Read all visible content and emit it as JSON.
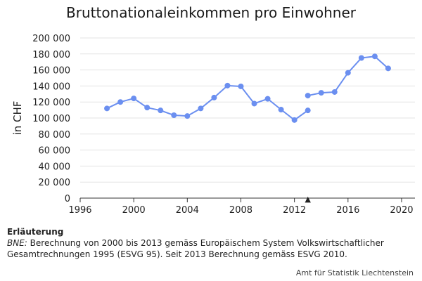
{
  "chart_data": {
    "type": "line",
    "title": "Bruttonationaleinkommen pro Einwohner",
    "ylabel": "in CHF",
    "xlabel": "",
    "xlim": [
      1996,
      2021
    ],
    "ylim": [
      0,
      200000
    ],
    "x_ticks": [
      "1996",
      "2000",
      "2004",
      "2008",
      "2012",
      "2016",
      "2020"
    ],
    "x_tick_values": [
      1996,
      2000,
      2004,
      2008,
      2012,
      2016,
      2020
    ],
    "y_ticks": [
      "0",
      "20 000",
      "40 000",
      "60 000",
      "80 000",
      "100 000",
      "120 000",
      "140 000",
      "160 000",
      "180 000",
      "200 000"
    ],
    "y_tick_values": [
      0,
      20000,
      40000,
      60000,
      80000,
      100000,
      120000,
      140000,
      160000,
      180000,
      200000
    ],
    "grid": "horizontal",
    "color": "#6b8ff0",
    "series": [
      {
        "segments": [
          {
            "x": [
              1998,
              1999,
              2000,
              2001,
              2002,
              2003,
              2004,
              2005,
              2006,
              2007,
              2008,
              2009,
              2010,
              2011,
              2012,
              2013
            ],
            "y": [
              112000,
              120000,
              124500,
              113000,
              109500,
              103500,
              102500,
              112000,
              125500,
              140500,
              139500,
              118000,
              124000,
              110500,
              97500,
              109500
            ]
          },
          {
            "x": [
              2013,
              2014,
              2015,
              2016,
              2017,
              2018,
              2019
            ],
            "y": [
              128000,
              131500,
              132500,
              156500,
              175000,
              177000,
              162000
            ]
          }
        ]
      }
    ],
    "marker": {
      "x": 2013,
      "symbol": "▲"
    }
  },
  "note": {
    "heading": "Erläuterung",
    "abbr": "BNE:",
    "text": " Berechnung von 2000 bis 2013 gemäss Europäischem System Volkswirtschaftlicher Gesamtrechnungen 1995 (ESVG 95). Seit 2013 Berechnung gemäss ESVG 2010."
  },
  "source": "Amt für Statistik Liechtenstein"
}
